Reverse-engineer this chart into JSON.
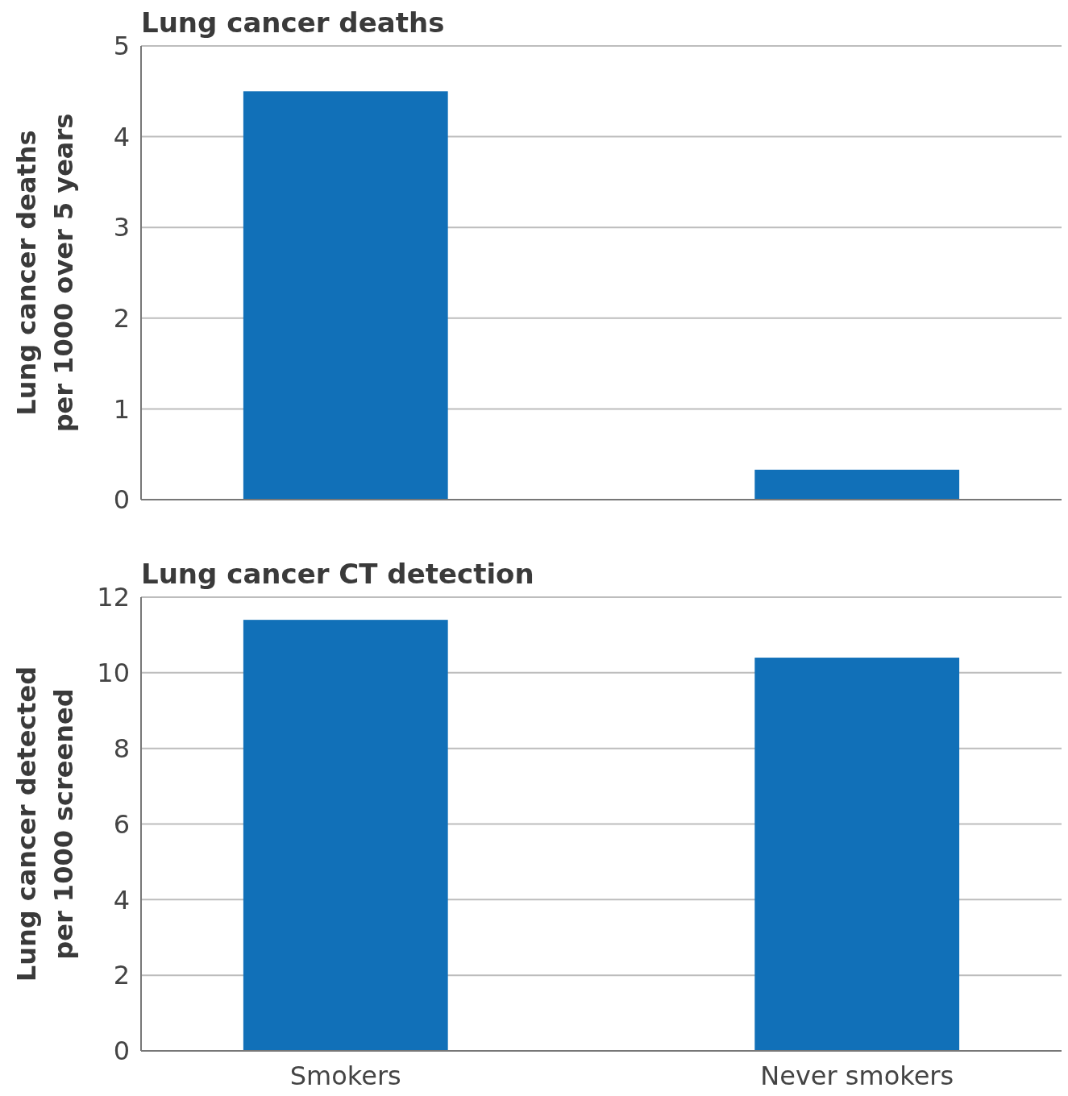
{
  "chart_data": [
    {
      "type": "bar",
      "title": "Lung cancer deaths",
      "ylabel": "Lung cancer deaths\nper 1000 over 5 years",
      "categories": [
        null,
        null
      ],
      "values": [
        4.5,
        0.33
      ],
      "color": "#1170b8",
      "ylim": [
        0,
        5
      ],
      "yticks": [
        0,
        1,
        2,
        3,
        4,
        5
      ],
      "grid": "y",
      "tick_labels": "y"
    },
    {
      "type": "bar",
      "title": "Lung cancer CT detection",
      "ylabel": "Lung cancer detected\nper 1000 screened",
      "categories": [
        "Smokers",
        "Never smokers"
      ],
      "values": [
        11.4,
        10.4
      ],
      "color": "#1170b8",
      "ylim": [
        0,
        12
      ],
      "yticks": [
        0,
        2,
        4,
        6,
        8,
        10,
        12
      ],
      "grid": "y"
    }
  ]
}
